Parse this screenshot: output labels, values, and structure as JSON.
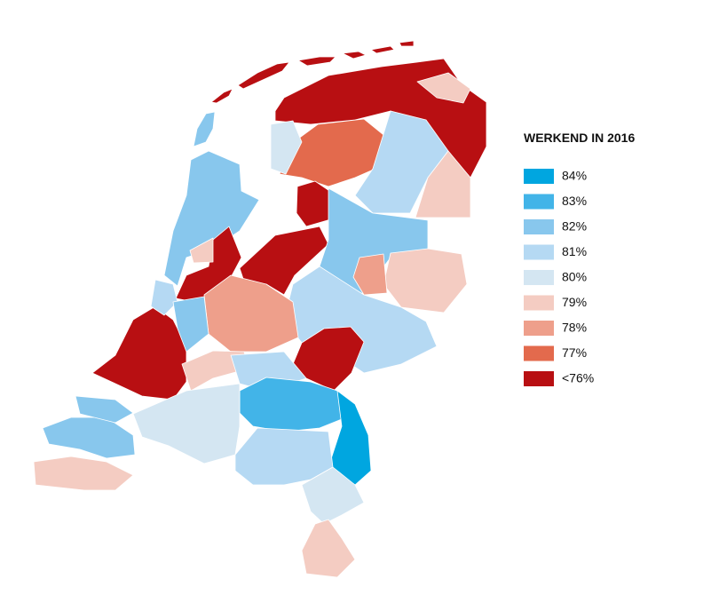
{
  "legend": {
    "title": "WERKEND IN 2016",
    "items": [
      {
        "label": "84%",
        "color": "#00a6e0"
      },
      {
        "label": "83%",
        "color": "#42b4e8"
      },
      {
        "label": "82%",
        "color": "#88c7ed"
      },
      {
        "label": "81%",
        "color": "#b5d9f3"
      },
      {
        "label": "80%",
        "color": "#d4e6f2"
      },
      {
        "label": "79%",
        "color": "#f4ccc2"
      },
      {
        "label": "78%",
        "color": "#ee9f8b"
      },
      {
        "label": "77%",
        "color": "#e36a4d"
      },
      {
        "label": "<76%",
        "color": "#b80f12"
      }
    ]
  }
}
